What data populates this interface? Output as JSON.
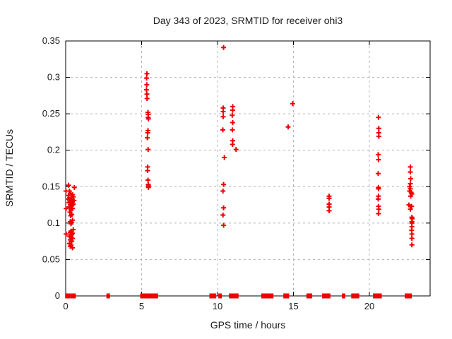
{
  "window": {
    "title": "Day 343 of 2023, SRMTID for receiver ohi3"
  },
  "colors": {
    "marker": "#ee0000",
    "grid": "#b3b3b3",
    "axis": "#000000",
    "background": "#ffffff",
    "text": "#1a1a1a"
  },
  "chart_data": {
    "type": "scatter",
    "title": "Day 343 of 2023, SRMTID for receiver ohi3",
    "xlabel": "GPS time / hours",
    "ylabel": "SRMTID / TECUs",
    "xlim": [
      0,
      24
    ],
    "ylim": [
      0,
      0.35
    ],
    "xticks": [
      0,
      5,
      10,
      15,
      20
    ],
    "xtick_labels": [
      "0",
      "5",
      "10",
      "15",
      "20"
    ],
    "yticks": [
      0,
      0.05,
      0.1,
      0.15,
      0.2,
      0.25,
      0.3,
      0.35
    ],
    "ytick_labels": [
      "0",
      "0.05",
      "0.1",
      "0.15",
      "0.2",
      "0.25",
      "0.3",
      "0.35"
    ],
    "grid": true,
    "legend": "none",
    "marker": "plus",
    "series": [
      {
        "name": "SRMTID",
        "points": [
          [
            0.19,
            0.152
          ],
          [
            0.57,
            0.149
          ],
          [
            0.02,
            0.144
          ],
          [
            0.25,
            0.144
          ],
          [
            0.3,
            0.141
          ],
          [
            0.45,
            0.139
          ],
          [
            0.2,
            0.138
          ],
          [
            0.5,
            0.136
          ],
          [
            0.35,
            0.135
          ],
          [
            0.15,
            0.133
          ],
          [
            0.4,
            0.132
          ],
          [
            0.55,
            0.131
          ],
          [
            0.28,
            0.13
          ],
          [
            0.45,
            0.129
          ],
          [
            0.22,
            0.128
          ],
          [
            0.35,
            0.127
          ],
          [
            0.5,
            0.126
          ],
          [
            0.3,
            0.125
          ],
          [
            0.42,
            0.124
          ],
          [
            0.25,
            0.122
          ],
          [
            0.03,
            0.12
          ],
          [
            0.45,
            0.12
          ],
          [
            0.35,
            0.118
          ],
          [
            0.28,
            0.115
          ],
          [
            0.4,
            0.112
          ],
          [
            0.33,
            0.11
          ],
          [
            0.45,
            0.104
          ],
          [
            0.3,
            0.102
          ],
          [
            0.4,
            0.101
          ],
          [
            0.35,
            0.099
          ],
          [
            0.5,
            0.091
          ],
          [
            0.35,
            0.089
          ],
          [
            0.3,
            0.087
          ],
          [
            0.45,
            0.086
          ],
          [
            0.03,
            0.085
          ],
          [
            0.4,
            0.084
          ],
          [
            0.25,
            0.082
          ],
          [
            0.35,
            0.081
          ],
          [
            0.45,
            0.079
          ],
          [
            0.3,
            0.077
          ],
          [
            0.4,
            0.075
          ],
          [
            0.25,
            0.072
          ],
          [
            0.35,
            0.07
          ],
          [
            0.3,
            0.068
          ],
          [
            0.45,
            0.066
          ],
          [
            5.35,
            0.305
          ],
          [
            5.33,
            0.299
          ],
          [
            5.34,
            0.29
          ],
          [
            5.32,
            0.283
          ],
          [
            5.35,
            0.277
          ],
          [
            5.36,
            0.271
          ],
          [
            5.42,
            0.252
          ],
          [
            5.44,
            0.249
          ],
          [
            5.43,
            0.245
          ],
          [
            5.45,
            0.243
          ],
          [
            5.42,
            0.227
          ],
          [
            5.4,
            0.224
          ],
          [
            5.38,
            0.217
          ],
          [
            5.43,
            0.201
          ],
          [
            5.4,
            0.177
          ],
          [
            5.39,
            0.172
          ],
          [
            5.42,
            0.159
          ],
          [
            5.44,
            0.153
          ],
          [
            5.46,
            0.151
          ],
          [
            5.45,
            0.149
          ],
          [
            10.4,
            0.341
          ],
          [
            10.37,
            0.258
          ],
          [
            10.37,
            0.253
          ],
          [
            10.37,
            0.246
          ],
          [
            10.35,
            0.228
          ],
          [
            10.45,
            0.19
          ],
          [
            10.4,
            0.153
          ],
          [
            10.36,
            0.144
          ],
          [
            10.4,
            0.121
          ],
          [
            10.36,
            0.111
          ],
          [
            10.4,
            0.097
          ],
          [
            11.0,
            0.26
          ],
          [
            11.0,
            0.255
          ],
          [
            10.97,
            0.248
          ],
          [
            11.0,
            0.238
          ],
          [
            10.98,
            0.228
          ],
          [
            11.0,
            0.213
          ],
          [
            10.99,
            0.208
          ],
          [
            11.22,
            0.201
          ],
          [
            14.95,
            0.264
          ],
          [
            14.65,
            0.232
          ],
          [
            17.35,
            0.137
          ],
          [
            17.35,
            0.134
          ],
          [
            17.35,
            0.126
          ],
          [
            17.35,
            0.122
          ],
          [
            17.35,
            0.117
          ],
          [
            20.6,
            0.245
          ],
          [
            20.62,
            0.23
          ],
          [
            20.62,
            0.224
          ],
          [
            20.62,
            0.219
          ],
          [
            20.58,
            0.194
          ],
          [
            20.6,
            0.187
          ],
          [
            20.58,
            0.168
          ],
          [
            20.6,
            0.149
          ],
          [
            20.6,
            0.147
          ],
          [
            20.6,
            0.137
          ],
          [
            20.58,
            0.133
          ],
          [
            20.6,
            0.123
          ],
          [
            20.62,
            0.119
          ],
          [
            20.6,
            0.113
          ],
          [
            22.7,
            0.177
          ],
          [
            22.7,
            0.17
          ],
          [
            22.72,
            0.161
          ],
          [
            22.7,
            0.154
          ],
          [
            22.65,
            0.15
          ],
          [
            22.7,
            0.147
          ],
          [
            22.65,
            0.144
          ],
          [
            22.75,
            0.142
          ],
          [
            22.8,
            0.14
          ],
          [
            22.72,
            0.137
          ],
          [
            22.6,
            0.125
          ],
          [
            22.78,
            0.123
          ],
          [
            22.7,
            0.119
          ],
          [
            22.8,
            0.108
          ],
          [
            22.82,
            0.106
          ],
          [
            22.8,
            0.102
          ],
          [
            22.8,
            0.1
          ],
          [
            22.8,
            0.095
          ],
          [
            22.78,
            0.09
          ],
          [
            22.8,
            0.085
          ],
          [
            22.8,
            0.079
          ],
          [
            22.8,
            0.07
          ]
        ]
      }
    ],
    "zero_points": [
      0.08,
      0.18,
      0.42,
      0.55,
      2.8,
      5.02,
      5.12,
      5.3,
      5.38,
      5.58,
      5.68,
      5.85,
      5.97,
      9.58,
      9.7,
      9.8,
      10.17,
      10.87,
      10.97,
      11.15,
      11.27,
      13.0,
      13.12,
      13.3,
      13.45,
      13.57,
      14.45,
      14.6,
      15.97,
      16.12,
      17.0,
      17.17,
      17.32,
      18.3,
      18.92,
      19.06,
      19.22,
      20.35,
      20.48,
      20.7,
      22.45,
      22.57,
      22.68
    ]
  }
}
